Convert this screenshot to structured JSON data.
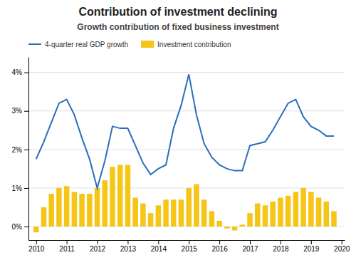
{
  "chart_data": {
    "type": "bar",
    "title": "Contribution of investment declining",
    "subtitle": "Growth contribution of fixed business investment",
    "x": [
      2010.0,
      2010.25,
      2010.5,
      2010.75,
      2011.0,
      2011.25,
      2011.5,
      2011.75,
      2012.0,
      2012.25,
      2012.5,
      2012.75,
      2013.0,
      2013.25,
      2013.5,
      2013.75,
      2014.0,
      2014.25,
      2014.5,
      2014.75,
      2015.0,
      2015.25,
      2015.5,
      2015.75,
      2016.0,
      2016.25,
      2016.5,
      2016.75,
      2017.0,
      2017.25,
      2017.5,
      2017.75,
      2018.0,
      2018.25,
      2018.5,
      2018.75,
      2019.0,
      2019.25,
      2019.5,
      2019.75
    ],
    "series": [
      {
        "name": "4-quarter real GDP growth",
        "type": "line",
        "color": "#2A6EBB",
        "values": [
          1.75,
          2.2,
          2.7,
          3.2,
          3.3,
          2.9,
          2.3,
          1.75,
          1.0,
          1.7,
          2.6,
          2.55,
          2.55,
          2.1,
          1.65,
          1.35,
          1.5,
          1.6,
          2.55,
          3.15,
          3.95,
          2.9,
          2.15,
          1.8,
          1.6,
          1.5,
          1.45,
          1.45,
          2.1,
          2.15,
          2.2,
          2.5,
          2.85,
          3.2,
          3.3,
          2.85,
          2.6,
          2.5,
          2.35,
          2.35
        ]
      },
      {
        "name": "Investment contribution",
        "type": "bar",
        "color": "#F5C518",
        "values": [
          -0.15,
          0.5,
          0.85,
          1.0,
          1.05,
          0.9,
          0.85,
          0.85,
          1.0,
          1.2,
          1.55,
          1.6,
          1.6,
          0.75,
          0.6,
          0.35,
          0.55,
          0.7,
          0.7,
          0.7,
          1.0,
          1.1,
          0.7,
          0.4,
          0.15,
          -0.05,
          -0.1,
          0.05,
          0.35,
          0.6,
          0.55,
          0.65,
          0.75,
          0.8,
          0.9,
          1.0,
          0.9,
          0.75,
          0.65,
          0.4
        ]
      }
    ],
    "xlim": [
      2009.75,
      2020.1
    ],
    "xticks": [
      2010,
      2011,
      2012,
      2013,
      2014,
      2015,
      2016,
      2017,
      2018,
      2019,
      2020
    ],
    "ylim": [
      -0.35,
      4.4
    ],
    "yticks": [
      {
        "value": 0,
        "label": "0%"
      },
      {
        "value": 1,
        "label": "1%"
      },
      {
        "value": 2,
        "label": "2%"
      },
      {
        "value": 3,
        "label": "3%"
      },
      {
        "value": 4,
        "label": "4%"
      }
    ],
    "grid": true,
    "legend": "top-left"
  }
}
